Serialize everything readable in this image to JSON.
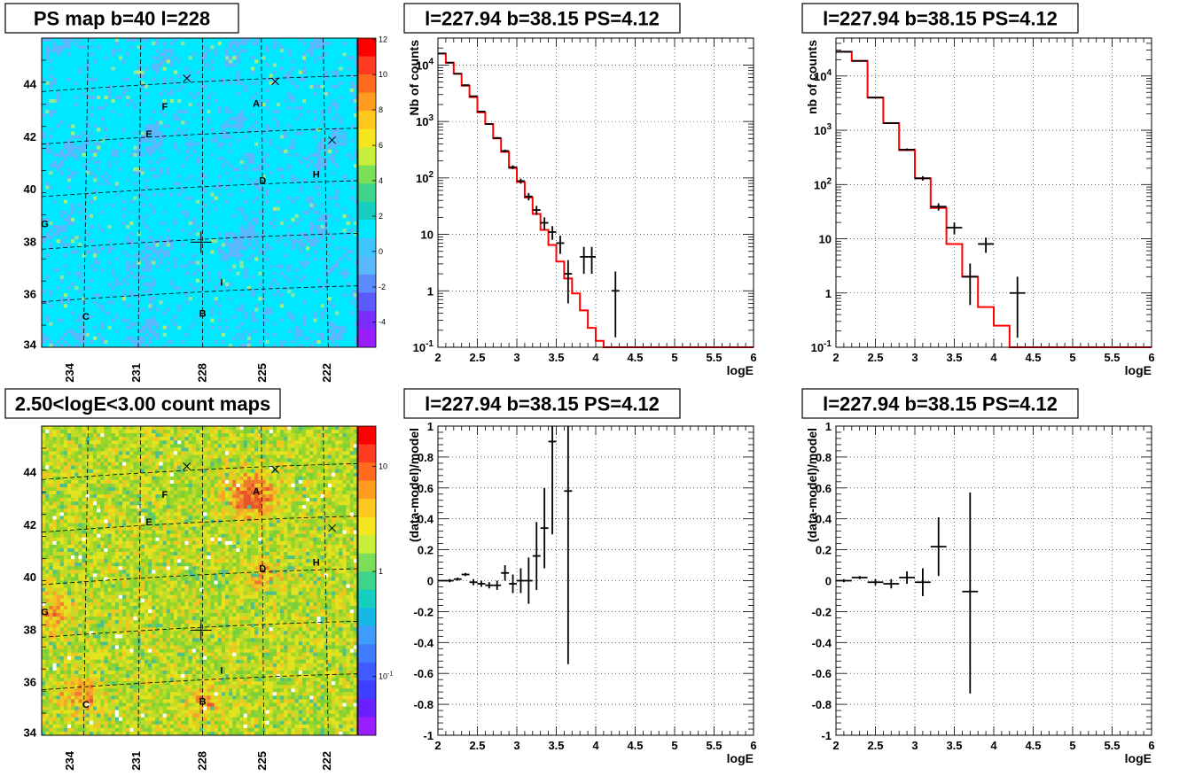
{
  "maps": [
    {
      "title": "PS map b=40 l=228",
      "kind": "ps",
      "colorbar": {
        "ticks": [
          "12",
          "10",
          "8",
          "6",
          "4",
          "2",
          "0",
          "-2",
          "-4"
        ]
      },
      "lat_ticks": [
        "44",
        "42",
        "40",
        "38",
        "36",
        "34"
      ],
      "lon_ticks": [
        "234",
        "231",
        "228",
        "225",
        "222"
      ],
      "markers": [
        "A",
        "B",
        "C",
        "D",
        "E",
        "F",
        "G",
        "H",
        "I"
      ]
    },
    {
      "title": "2.50<logE<3.00 count maps",
      "kind": "counts",
      "colorbar": {
        "ticks": [
          "10",
          "1",
          "10^-1"
        ]
      },
      "lat_ticks": [
        "44",
        "42",
        "40",
        "38",
        "36",
        "34"
      ],
      "lon_ticks": [
        "234",
        "231",
        "228",
        "225",
        "222"
      ],
      "markers": [
        "A",
        "B",
        "C",
        "D",
        "E",
        "F",
        "G",
        "H",
        "I"
      ]
    }
  ],
  "chart_data": [
    {
      "type": "step-errorbar",
      "title": "l=227.94 b=38.15 PS=4.12",
      "xlabel": "logE",
      "ylabel": "Nb of counts",
      "yscale": "log",
      "xlim": [
        2,
        6
      ],
      "ylim": [
        0.1,
        30000
      ],
      "x_ticks": [
        "2",
        "2.5",
        "3",
        "3.5",
        "4",
        "4.5",
        "5",
        "5.5",
        "6"
      ],
      "y_ticks": [
        "10^4",
        "10^3",
        "10^2",
        "10",
        "1",
        "10^-1"
      ],
      "grid": true,
      "series": [
        {
          "role": "model",
          "color": "#ff0000",
          "bin_width": 0.1,
          "x": [
            2.0,
            2.1,
            2.2,
            2.3,
            2.4,
            2.5,
            2.6,
            2.7,
            2.8,
            2.9,
            3.0,
            3.1,
            3.2,
            3.3,
            3.4,
            3.5,
            3.6,
            3.7,
            3.8,
            3.9,
            4.0,
            4.1,
            4.2,
            4.3,
            4.4,
            4.5,
            4.6,
            4.7,
            4.8,
            4.9,
            5.0,
            5.1,
            5.2,
            5.3,
            5.4,
            5.5,
            5.6,
            5.7,
            5.8,
            5.9
          ],
          "values": [
            16000,
            11000,
            7000,
            4300,
            2700,
            1450,
            900,
            500,
            290,
            150,
            85,
            45,
            23,
            12,
            6.5,
            3.3,
            1.65,
            0.9,
            0.45,
            0.22,
            0.13,
            0.1,
            0.1,
            0.1,
            0.1,
            0.1,
            0.1,
            0.1,
            0.1,
            0.1,
            0.1,
            0.1,
            0.1,
            0.1,
            0.1,
            0.1,
            0.1,
            0.1,
            0.1,
            0.1
          ]
        },
        {
          "role": "data",
          "color": "#000000",
          "x": [
            2.05,
            2.15,
            2.25,
            2.35,
            2.45,
            2.55,
            2.65,
            2.75,
            2.85,
            2.95,
            3.05,
            3.15,
            3.25,
            3.35,
            3.45,
            3.55,
            3.65,
            3.85,
            3.95,
            4.25
          ],
          "y": [
            16000,
            11000,
            7000,
            4400,
            2800,
            1500,
            900,
            510,
            300,
            155,
            88,
            47,
            27,
            16,
            11,
            7,
            2,
            4,
            4,
            1
          ],
          "y_low": [
            15900,
            10900,
            6920,
            4330,
            2750,
            1460,
            870,
            490,
            283,
            143,
            79,
            40,
            22,
            12,
            8,
            4.5,
            0.6,
            2,
            2,
            0.15
          ],
          "y_high": [
            16100,
            11100,
            7080,
            4470,
            2850,
            1540,
            930,
            530,
            317,
            167,
            97,
            54,
            32,
            20,
            14,
            9.5,
            3.5,
            6,
            6,
            2.2
          ]
        }
      ]
    },
    {
      "type": "step-errorbar",
      "title": "l=227.94 b=38.15 PS=4.12",
      "xlabel": "logE",
      "ylabel": "nb of counts",
      "yscale": "log",
      "xlim": [
        2,
        6
      ],
      "ylim": [
        0.1,
        50000
      ],
      "x_ticks": [
        "2",
        "2.5",
        "3",
        "3.5",
        "4",
        "4.5",
        "5",
        "5.5",
        "6"
      ],
      "y_ticks": [
        "10^4",
        "10^3",
        "10^2",
        "10",
        "1",
        "10^-1"
      ],
      "grid": true,
      "series": [
        {
          "role": "model",
          "color": "#ff0000",
          "bin_width": 0.2,
          "x": [
            2.0,
            2.2,
            2.4,
            2.6,
            2.8,
            3.0,
            3.2,
            3.4,
            3.6,
            3.8,
            4.0,
            4.2,
            4.4,
            4.6,
            4.8,
            5.0,
            5.2,
            5.4,
            5.6,
            5.8
          ],
          "values": [
            28000,
            19000,
            4000,
            1350,
            430,
            130,
            37,
            8,
            2,
            0.55,
            0.25,
            0.1,
            0.1,
            0.1,
            0.1,
            0.1,
            0.1,
            0.1,
            0.1,
            0.1
          ]
        },
        {
          "role": "data",
          "color": "#000000",
          "x": [
            2.1,
            2.3,
            2.5,
            2.7,
            2.9,
            3.1,
            3.3,
            3.5,
            3.7,
            3.9,
            4.3
          ],
          "y": [
            28000,
            19000,
            4000,
            1350,
            440,
            130,
            39,
            16,
            2,
            8,
            1
          ],
          "y_low": [
            27800,
            18800,
            3930,
            1310,
            418,
            118,
            33,
            12,
            0.6,
            5.5,
            0.15
          ],
          "y_high": [
            28200,
            19200,
            4070,
            1390,
            462,
            142,
            45,
            20,
            3.5,
            10.5,
            2
          ]
        }
      ]
    },
    {
      "type": "errorbar",
      "title": "l=227.94 b=38.15 PS=4.12",
      "xlabel": "logE",
      "ylabel": "(data-model)/model",
      "xlim": [
        2,
        6
      ],
      "ylim": [
        -1,
        1
      ],
      "x_ticks": [
        "2",
        "2.5",
        "3",
        "3.5",
        "4",
        "4.5",
        "5",
        "5.5",
        "6"
      ],
      "y_ticks": [
        "1",
        "0.8",
        "0.6",
        "0.4",
        "0.2",
        "0",
        "-0.2",
        "-0.4",
        "-0.6",
        "-0.8",
        "-1"
      ],
      "grid": true,
      "series": [
        {
          "role": "residual",
          "color": "#000000",
          "bin_width": 0.1,
          "x": [
            2.05,
            2.15,
            2.25,
            2.35,
            2.45,
            2.55,
            2.65,
            2.75,
            2.85,
            2.95,
            3.05,
            3.15,
            3.25,
            3.35,
            3.45,
            3.65
          ],
          "y": [
            0,
            0,
            0.01,
            0.04,
            -0.01,
            -0.02,
            -0.03,
            -0.03,
            0.05,
            -0.02,
            0,
            0,
            0.16,
            0.34,
            0.9,
            0.58
          ],
          "y_low": [
            0,
            -0.01,
            0,
            0.03,
            -0.03,
            -0.04,
            -0.05,
            -0.06,
            0,
            -0.08,
            -0.08,
            -0.15,
            -0.06,
            0.08,
            0.3,
            -0.54
          ],
          "y_high": [
            0,
            0.01,
            0.02,
            0.05,
            0.01,
            0,
            -0.01,
            0,
            0.1,
            0.04,
            0.08,
            0.15,
            0.38,
            0.6,
            1.0,
            1.0
          ]
        }
      ]
    },
    {
      "type": "errorbar",
      "title": "l=227.94 b=38.15 PS=4.12",
      "xlabel": "logE",
      "ylabel": "(data-model)/model",
      "xlim": [
        2,
        6
      ],
      "ylim": [
        -1,
        1
      ],
      "x_ticks": [
        "2",
        "2.5",
        "3",
        "3.5",
        "4",
        "4.5",
        "5",
        "5.5",
        "6"
      ],
      "y_ticks": [
        "1",
        "0.8",
        "0.6",
        "0.4",
        "0.2",
        "0",
        "-0.2",
        "-0.4",
        "-0.6",
        "-0.8",
        "-1"
      ],
      "grid": true,
      "series": [
        {
          "role": "residual",
          "color": "#000000",
          "bin_width": 0.2,
          "x": [
            2.1,
            2.3,
            2.5,
            2.7,
            2.9,
            3.1,
            3.3,
            3.7
          ],
          "y": [
            0,
            0.02,
            -0.01,
            -0.02,
            0.02,
            -0.01,
            0.22,
            -0.07
          ],
          "y_low": [
            -0.01,
            0.01,
            -0.03,
            -0.05,
            -0.02,
            -0.1,
            0.03,
            -0.73
          ],
          "y_high": [
            0.01,
            0.03,
            0.01,
            0.01,
            0.06,
            0.08,
            0.41,
            0.57
          ]
        }
      ]
    }
  ]
}
